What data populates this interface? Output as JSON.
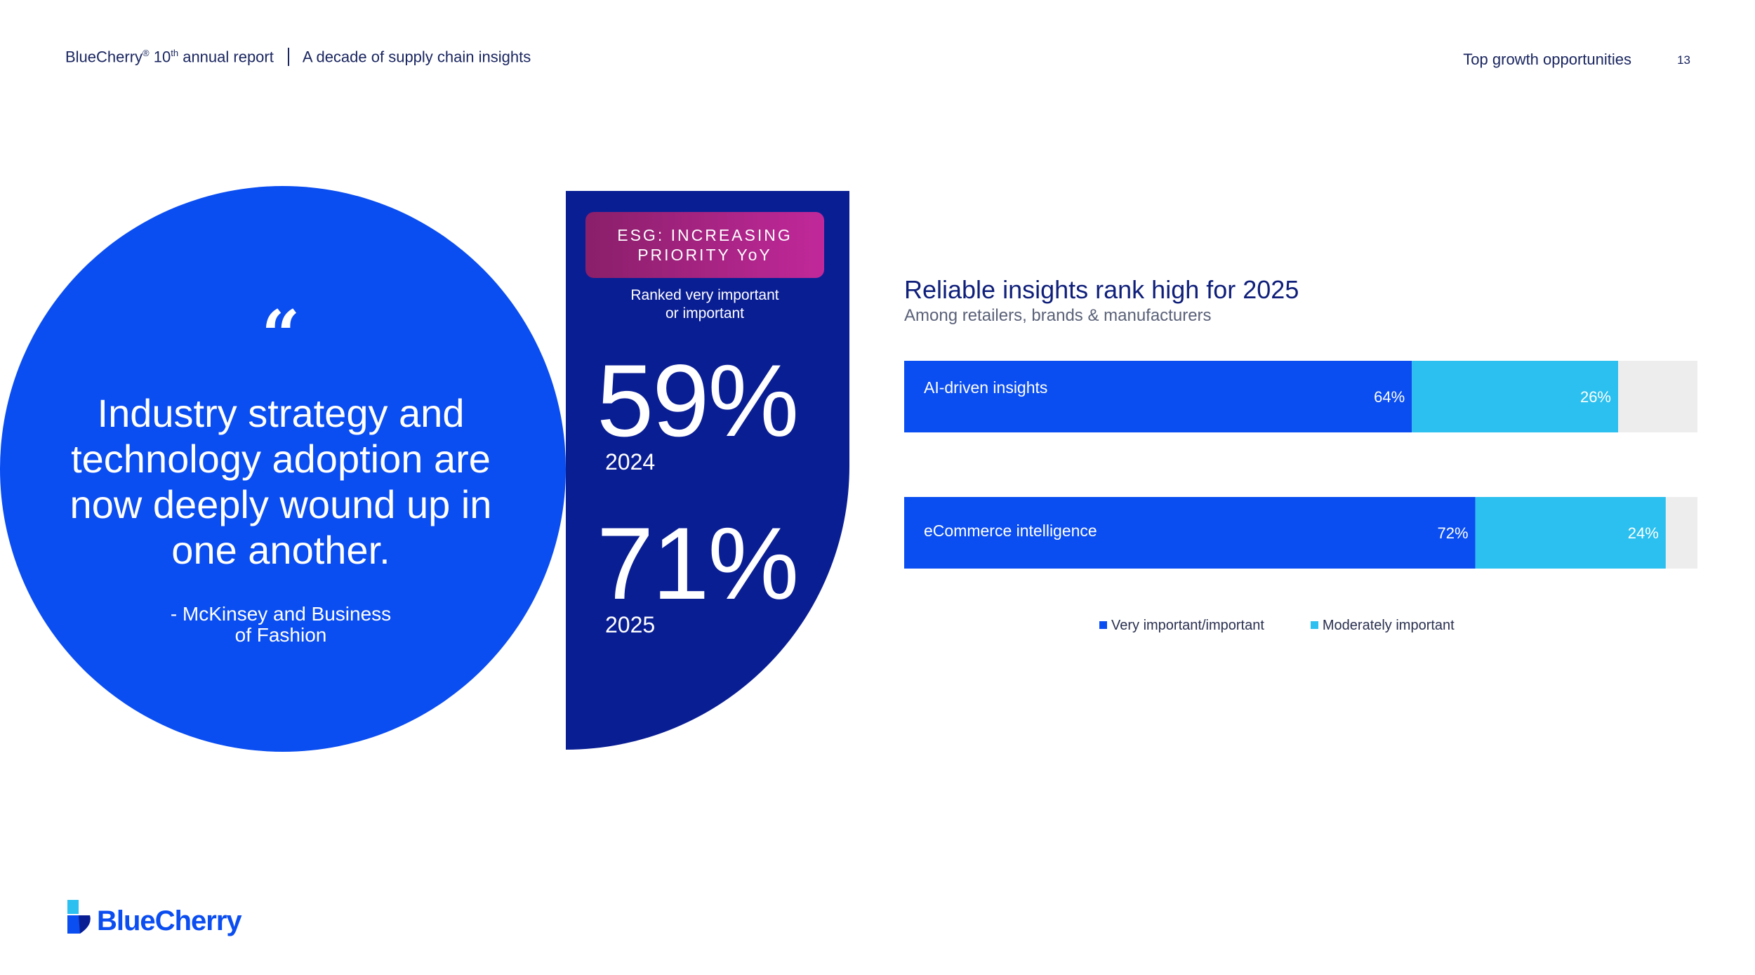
{
  "header": {
    "brand": "BlueCherry",
    "reg": "®",
    "edition_num": "10",
    "edition_suffix": "th",
    "report_label": " annual report",
    "tagline": "A decade of supply chain insights",
    "section": "Top growth opportunities",
    "page_number": "13"
  },
  "quote": {
    "mark": "“",
    "text": "Industry strategy and technology adoption are now deeply wound up in one another.",
    "source_line1": "- McKinsey and Business",
    "source_line2": "of Fashion"
  },
  "esg": {
    "badge_line1": "ESG: INCREASING",
    "badge_line2": "PRIORITY YoY",
    "subtitle_line1": "Ranked very important",
    "subtitle_line2": "or important",
    "stats": [
      {
        "value": "59%",
        "year": "2024"
      },
      {
        "value": "71%",
        "year": "2025"
      }
    ]
  },
  "chart_data": {
    "type": "bar",
    "orientation": "horizontal",
    "stacked": true,
    "title": "Reliable insights rank high for 2025",
    "subtitle": "Among retailers, brands & manufacturers",
    "categories": [
      "AI-driven insights",
      "eCommerce intelligence"
    ],
    "series": [
      {
        "name": "Very important/important",
        "values": [
          64,
          72
        ],
        "labels": [
          "64%",
          "72%"
        ],
        "color": "#0a4df0"
      },
      {
        "name": "Moderately important",
        "values": [
          26,
          24
        ],
        "labels": [
          "26%",
          "24%"
        ],
        "color": "#2bc0ef"
      }
    ],
    "xlim": [
      0,
      100
    ],
    "remainder_color": "#ededed",
    "legend": "bottom",
    "grid": false
  },
  "logo": {
    "text_part1": "Blue",
    "text_part2": "Cherry",
    "icon": "bluecherry-logo-icon"
  }
}
